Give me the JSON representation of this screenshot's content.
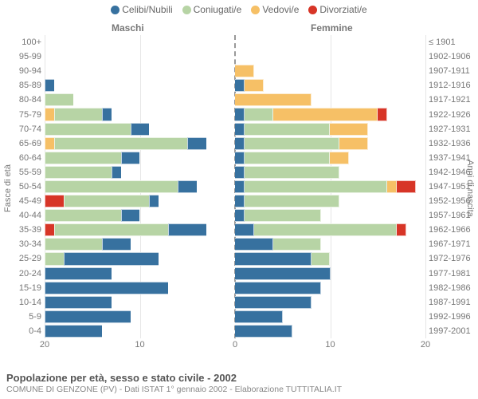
{
  "legend": [
    {
      "label": "Celibi/Nubili",
      "color": "#37719f"
    },
    {
      "label": "Coniugati/e",
      "color": "#b7d4a5"
    },
    {
      "label": "Vedovi/e",
      "color": "#f6c066"
    },
    {
      "label": "Divorziati/e",
      "color": "#d73527"
    }
  ],
  "gender_labels": {
    "male": "Maschi",
    "female": "Femmine"
  },
  "axis_titles": {
    "left": "Fasce di età",
    "right": "Anni di nascita"
  },
  "x_axis": {
    "max": 20,
    "ticks": [
      20,
      10,
      0,
      10,
      20
    ]
  },
  "colors": {
    "celibi": "#37719f",
    "coniugati": "#b7d4a5",
    "vedovi": "#f6c066",
    "divorziati": "#d73527",
    "grid": "#e6e6e6",
    "center": "#999999",
    "bg": "#ffffff"
  },
  "rows": [
    {
      "age": "100+",
      "birth": "≤ 1901",
      "m": [
        0,
        0,
        0,
        0
      ],
      "f": [
        0,
        0,
        0,
        0
      ]
    },
    {
      "age": "95-99",
      "birth": "1902-1906",
      "m": [
        0,
        0,
        0,
        0
      ],
      "f": [
        0,
        0,
        0,
        0
      ]
    },
    {
      "age": "90-94",
      "birth": "1907-1911",
      "m": [
        0,
        0,
        0,
        0
      ],
      "f": [
        0,
        0,
        2,
        0
      ]
    },
    {
      "age": "85-89",
      "birth": "1912-1916",
      "m": [
        1,
        0,
        0,
        0
      ],
      "f": [
        1,
        0,
        2,
        0
      ]
    },
    {
      "age": "80-84",
      "birth": "1917-1921",
      "m": [
        0,
        3,
        0,
        0
      ],
      "f": [
        0,
        0,
        8,
        0
      ]
    },
    {
      "age": "75-79",
      "birth": "1922-1926",
      "m": [
        1,
        5,
        1,
        0
      ],
      "f": [
        1,
        3,
        11,
        1
      ]
    },
    {
      "age": "70-74",
      "birth": "1927-1931",
      "m": [
        2,
        9,
        0,
        0
      ],
      "f": [
        1,
        9,
        4,
        0
      ]
    },
    {
      "age": "65-69",
      "birth": "1932-1936",
      "m": [
        2,
        14,
        1,
        0
      ],
      "f": [
        1,
        10,
        3,
        0
      ]
    },
    {
      "age": "60-64",
      "birth": "1937-1941",
      "m": [
        2,
        8,
        0,
        0
      ],
      "f": [
        1,
        9,
        2,
        0
      ]
    },
    {
      "age": "55-59",
      "birth": "1942-1946",
      "m": [
        1,
        7,
        0,
        0
      ],
      "f": [
        1,
        10,
        0,
        0
      ]
    },
    {
      "age": "50-54",
      "birth": "1947-1951",
      "m": [
        2,
        14,
        0,
        0
      ],
      "f": [
        1,
        15,
        1,
        2
      ]
    },
    {
      "age": "45-49",
      "birth": "1952-1956",
      "m": [
        1,
        9,
        0,
        2
      ],
      "f": [
        1,
        10,
        0,
        0
      ]
    },
    {
      "age": "40-44",
      "birth": "1957-1961",
      "m": [
        2,
        8,
        0,
        0
      ],
      "f": [
        1,
        8,
        0,
        0
      ]
    },
    {
      "age": "35-39",
      "birth": "1962-1966",
      "m": [
        4,
        12,
        0,
        1
      ],
      "f": [
        2,
        15,
        0,
        1
      ]
    },
    {
      "age": "30-34",
      "birth": "1967-1971",
      "m": [
        3,
        6,
        0,
        0
      ],
      "f": [
        4,
        5,
        0,
        0
      ]
    },
    {
      "age": "25-29",
      "birth": "1972-1976",
      "m": [
        10,
        2,
        0,
        0
      ],
      "f": [
        8,
        2,
        0,
        0
      ]
    },
    {
      "age": "20-24",
      "birth": "1977-1981",
      "m": [
        7,
        0,
        0,
        0
      ],
      "f": [
        10,
        0,
        0,
        0
      ]
    },
    {
      "age": "15-19",
      "birth": "1982-1986",
      "m": [
        13,
        0,
        0,
        0
      ],
      "f": [
        9,
        0,
        0,
        0
      ]
    },
    {
      "age": "10-14",
      "birth": "1987-1991",
      "m": [
        7,
        0,
        0,
        0
      ],
      "f": [
        8,
        0,
        0,
        0
      ]
    },
    {
      "age": "5-9",
      "birth": "1992-1996",
      "m": [
        9,
        0,
        0,
        0
      ],
      "f": [
        5,
        0,
        0,
        0
      ]
    },
    {
      "age": "0-4",
      "birth": "1997-2001",
      "m": [
        6,
        0,
        0,
        0
      ],
      "f": [
        6,
        0,
        0,
        0
      ]
    }
  ],
  "footer": {
    "title": "Popolazione per età, sesso e stato civile - 2002",
    "subtitle": "COMUNE DI GENZONE (PV) - Dati ISTAT 1° gennaio 2002 - Elaborazione TUTTITALIA.IT"
  }
}
